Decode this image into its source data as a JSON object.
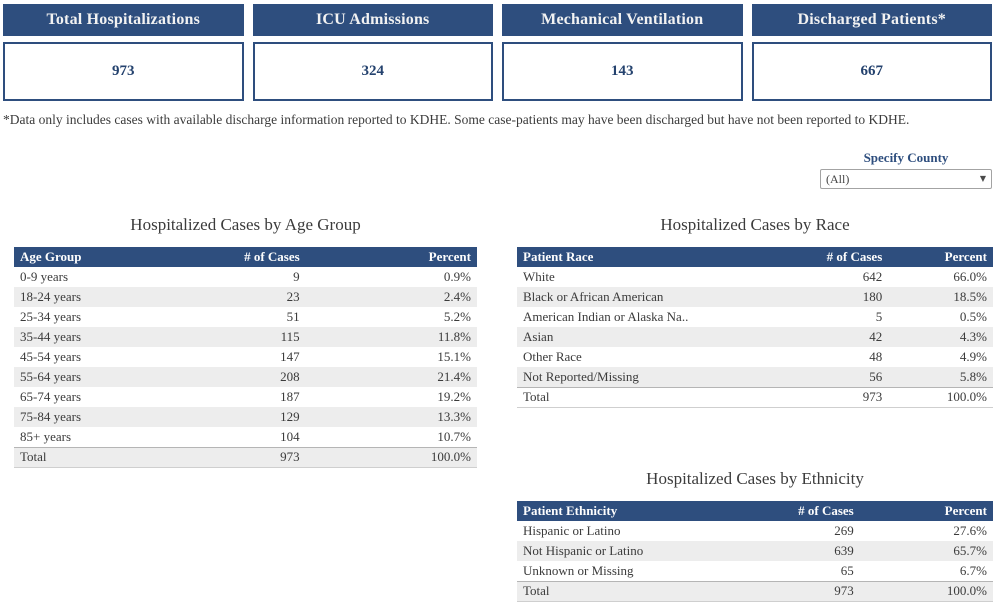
{
  "colors": {
    "primary_blue": "#2E4E7E",
    "card_value_text": "#24426E",
    "row_alt_gray": "#EDEDED",
    "body_text": "#3B3B3B"
  },
  "summary_cards": [
    {
      "label": "Total Hospitalizations",
      "value": "973"
    },
    {
      "label": "ICU Admissions",
      "value": "324"
    },
    {
      "label": "Mechanical Ventilation",
      "value": "143"
    },
    {
      "label": "Discharged Patients*",
      "value": "667"
    }
  ],
  "footnote": "*Data only includes cases with available discharge information reported to KDHE. Some case-patients may have been discharged but have not been reported to KDHE.",
  "county_filter": {
    "label": "Specify County",
    "selected_option": "(All)",
    "caret_icon": "▼"
  },
  "tables": {
    "age": {
      "title": "Hospitalized Cases by Age Group",
      "columns": [
        "Age Group",
        "# of Cases",
        "Percent"
      ],
      "rows": [
        [
          "0-9 years",
          "9",
          "0.9%"
        ],
        [
          "18-24 years",
          "23",
          "2.4%"
        ],
        [
          "25-34 years",
          "51",
          "5.2%"
        ],
        [
          "35-44 years",
          "115",
          "11.8%"
        ],
        [
          "45-54 years",
          "147",
          "15.1%"
        ],
        [
          "55-64 years",
          "208",
          "21.4%"
        ],
        [
          "65-74 years",
          "187",
          "19.2%"
        ],
        [
          "75-84 years",
          "129",
          "13.3%"
        ],
        [
          "85+ years",
          "104",
          "10.7%"
        ]
      ],
      "total": [
        "Total",
        "973",
        "100.0%"
      ]
    },
    "race": {
      "title": "Hospitalized Cases by Race",
      "columns": [
        "Patient Race",
        "# of Cases",
        "Percent"
      ],
      "rows": [
        [
          "White",
          "642",
          "66.0%"
        ],
        [
          "Black or African American",
          "180",
          "18.5%"
        ],
        [
          "American Indian or Alaska Na..",
          "5",
          "0.5%"
        ],
        [
          "Asian",
          "42",
          "4.3%"
        ],
        [
          "Other Race",
          "48",
          "4.9%"
        ],
        [
          "Not Reported/Missing",
          "56",
          "5.8%"
        ]
      ],
      "total": [
        "Total",
        "973",
        "100.0%"
      ]
    },
    "ethnicity": {
      "title": "Hospitalized Cases by Ethnicity",
      "columns": [
        "Patient Ethnicity",
        "# of Cases",
        "Percent"
      ],
      "rows": [
        [
          "Hispanic or Latino",
          "269",
          "27.6%"
        ],
        [
          "Not Hispanic or Latino",
          "639",
          "65.7%"
        ],
        [
          "Unknown or Missing",
          "65",
          "6.7%"
        ]
      ],
      "total": [
        "Total",
        "973",
        "100.0%"
      ]
    }
  }
}
